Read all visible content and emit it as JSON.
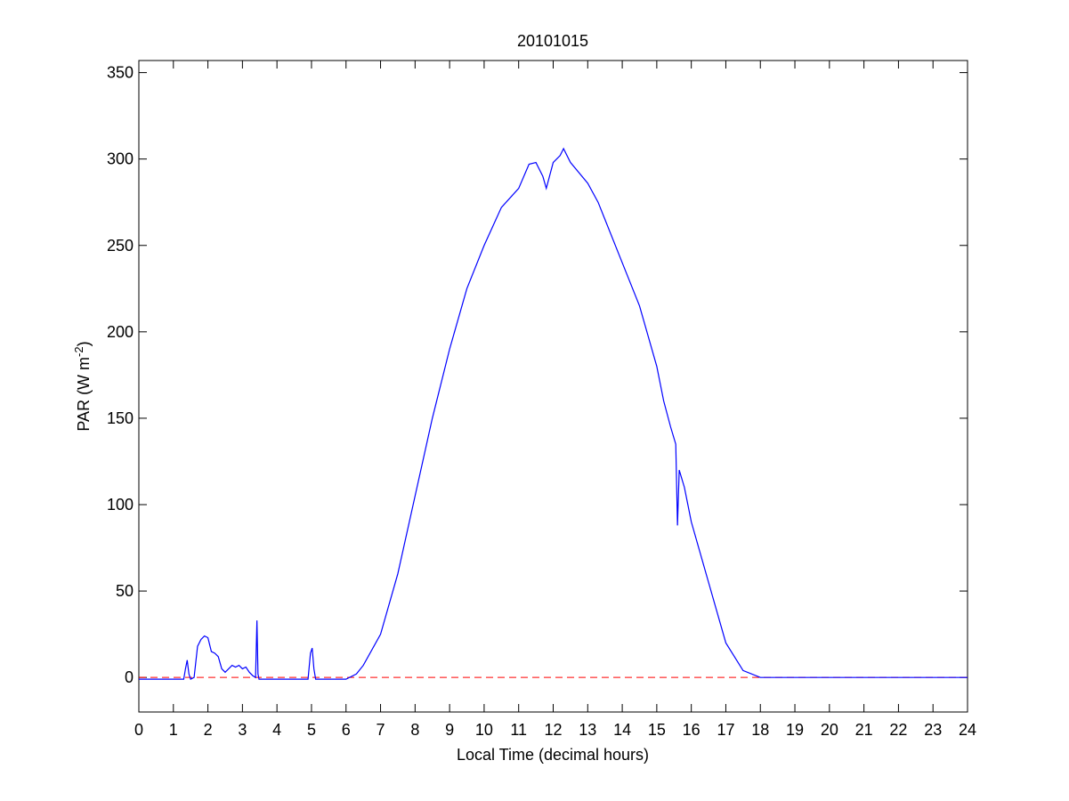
{
  "chart_data": {
    "type": "line",
    "title": "20101015",
    "xlabel": "Local Time (decimal hours)",
    "ylabel": [
      "PAR (W m",
      "-2",
      ")"
    ],
    "series": [
      {
        "color": "#0000ff",
        "x": [
          0,
          0.5,
          1.0,
          1.3,
          1.35,
          1.4,
          1.45,
          1.5,
          1.6,
          1.7,
          1.8,
          1.9,
          2.0,
          2.1,
          2.2,
          2.3,
          2.4,
          2.5,
          2.6,
          2.7,
          2.8,
          2.9,
          3.0,
          3.1,
          3.2,
          3.3,
          3.38,
          3.42,
          3.45,
          3.48,
          3.55,
          3.7,
          4.0,
          4.5,
          4.9,
          4.97,
          5.02,
          5.07,
          5.12,
          5.2,
          5.5,
          6.0,
          6.3,
          6.5,
          7.0,
          7.5,
          8.0,
          8.5,
          9.0,
          9.5,
          10.0,
          10.5,
          11.0,
          11.3,
          11.5,
          11.7,
          11.8,
          12.0,
          12.2,
          12.3,
          12.5,
          13.0,
          13.3,
          13.5,
          14.0,
          14.5,
          15.0,
          15.2,
          15.4,
          15.55,
          15.6,
          15.65,
          15.8,
          16.0,
          16.5,
          17.0,
          17.5,
          18.0,
          20.0,
          24.0
        ],
        "values": [
          -1,
          -1,
          -1,
          -1,
          5,
          10,
          2,
          -1,
          0,
          18,
          22,
          24,
          23,
          15,
          14,
          12,
          5,
          3,
          5,
          7,
          6,
          7,
          5,
          6,
          3,
          1,
          0,
          33,
          2,
          -1,
          -1,
          -1,
          -1,
          -1,
          -1,
          14,
          17,
          5,
          -1,
          -1,
          -1,
          -1,
          2,
          7,
          25,
          60,
          105,
          150,
          190,
          225,
          250,
          272,
          283,
          297,
          298,
          290,
          283,
          298,
          302,
          306,
          298,
          286,
          275,
          265,
          240,
          215,
          180,
          160,
          145,
          135,
          88,
          120,
          110,
          90,
          55,
          20,
          4,
          0,
          0,
          0
        ]
      }
    ],
    "hline": {
      "value": 0,
      "color": "#ff0000",
      "style": "dashed"
    },
    "xlim": [
      0,
      24
    ],
    "ylim": [
      -20,
      357
    ],
    "xticks": [
      0,
      1,
      2,
      3,
      4,
      5,
      6,
      7,
      8,
      9,
      10,
      11,
      12,
      13,
      14,
      15,
      16,
      17,
      18,
      19,
      20,
      21,
      22,
      23,
      24
    ],
    "yticks": [
      0,
      50,
      100,
      150,
      200,
      250,
      300,
      350
    ]
  }
}
